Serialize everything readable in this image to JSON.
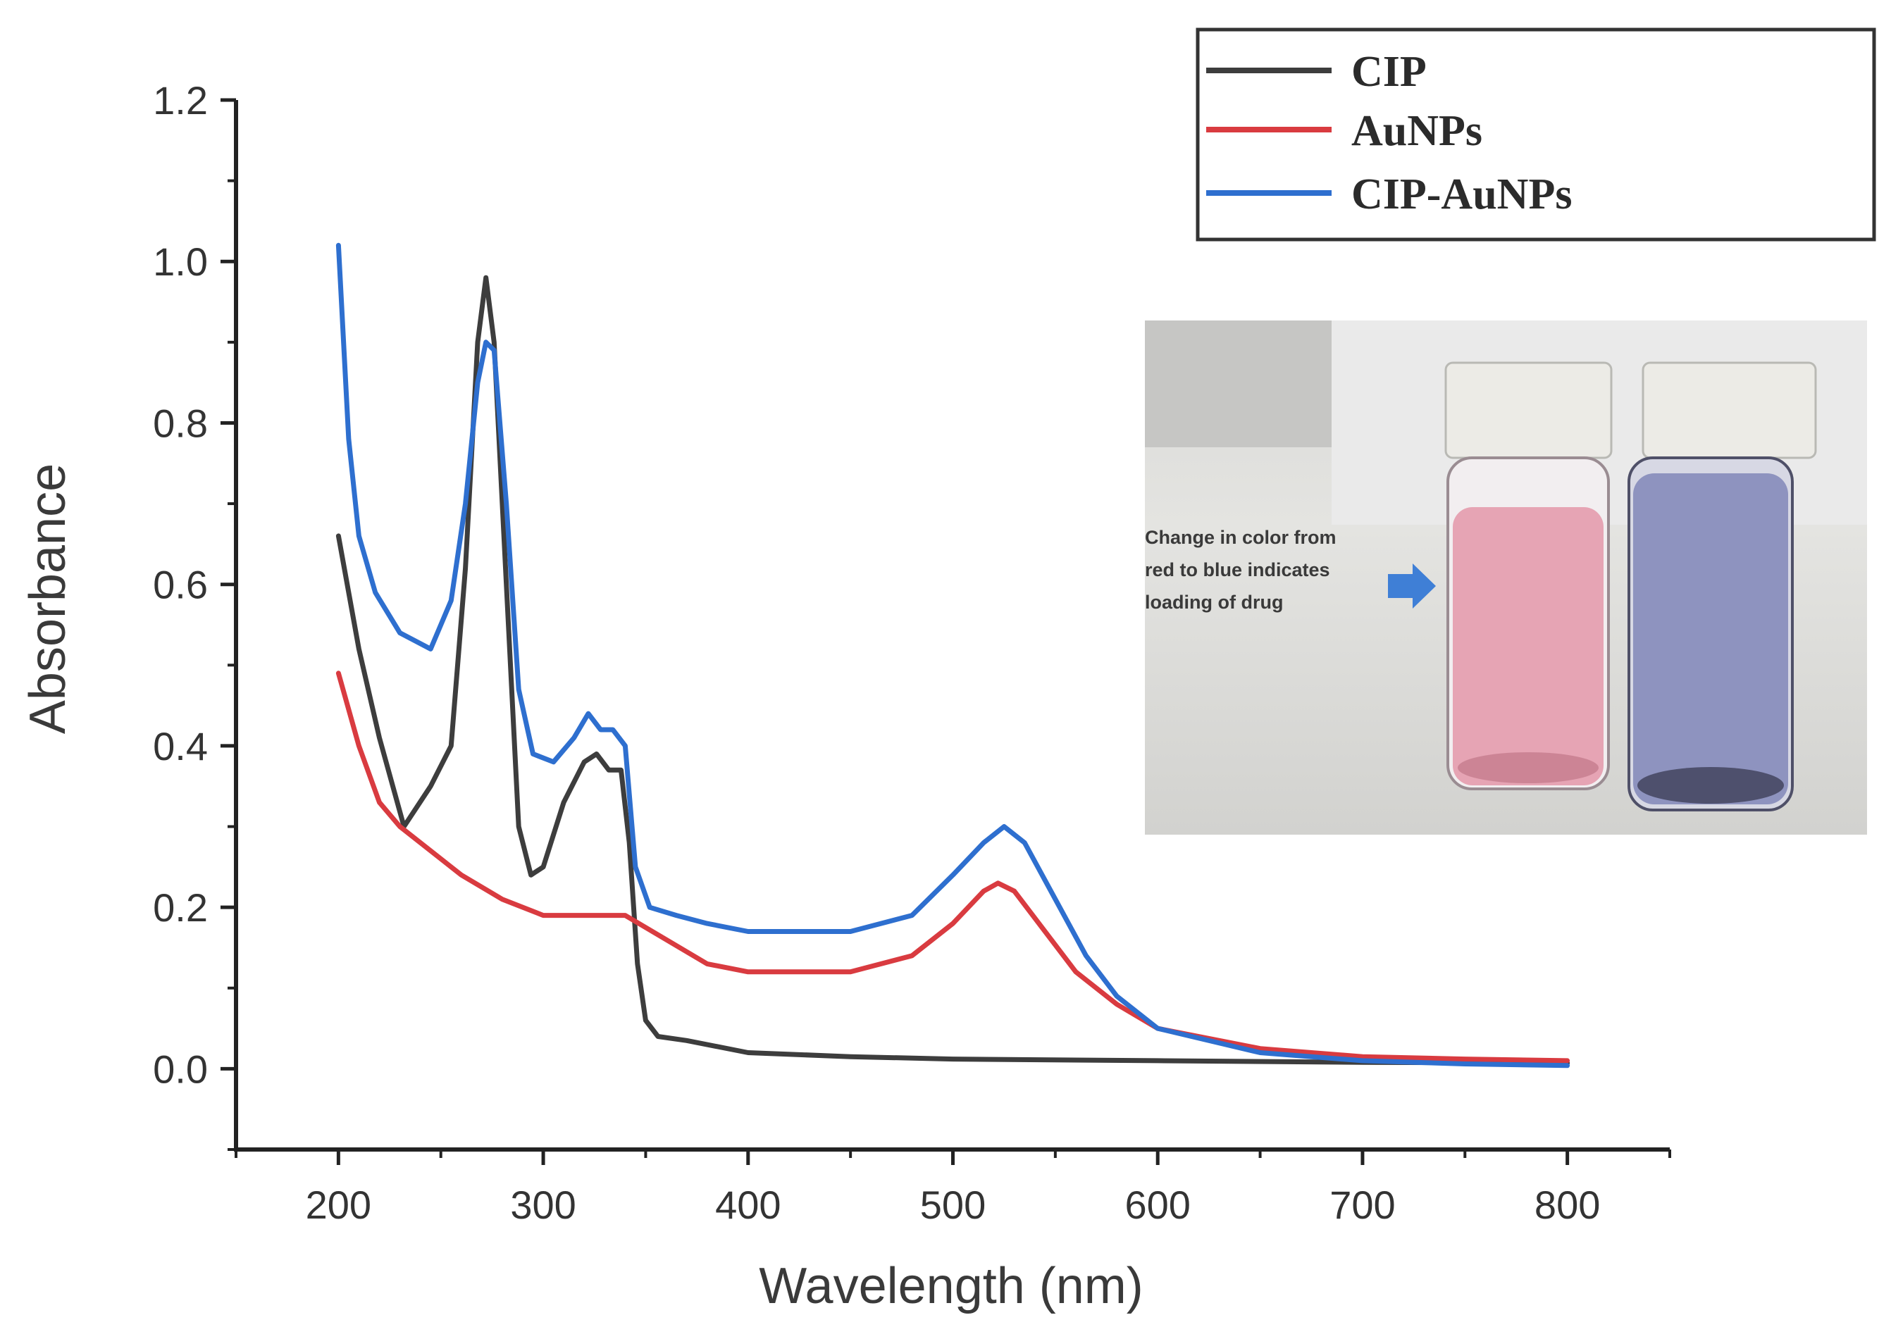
{
  "chart_data": {
    "type": "line",
    "title": "",
    "xlabel": "Wavelength (nm)",
    "ylabel": "Absorbance",
    "xlim": [
      150,
      850
    ],
    "ylim": [
      -0.1,
      1.2
    ],
    "xticks": [
      200,
      300,
      400,
      500,
      600,
      700,
      800
    ],
    "yticks": [
      0.0,
      0.2,
      0.4,
      0.6,
      0.8,
      1.0,
      1.2
    ],
    "xtick_labels": [
      "200",
      "300",
      "400",
      "500",
      "600",
      "700",
      "800"
    ],
    "ytick_labels": [
      "0.0",
      "0.2",
      "0.4",
      "0.6",
      "0.8",
      "1.0",
      "1.2"
    ],
    "grid": false,
    "legend_position": "top-right",
    "series": [
      {
        "name": "CIP",
        "color": "#3d3d3d",
        "x": [
          200,
          210,
          220,
          232,
          245,
          255,
          262,
          268,
          272,
          276,
          282,
          288,
          294,
          300,
          310,
          320,
          326,
          332,
          338,
          342,
          346,
          350,
          356,
          370,
          400,
          450,
          500,
          600,
          700,
          800
        ],
        "y": [
          0.66,
          0.52,
          0.41,
          0.3,
          0.35,
          0.4,
          0.62,
          0.9,
          0.98,
          0.9,
          0.6,
          0.3,
          0.24,
          0.25,
          0.33,
          0.38,
          0.39,
          0.37,
          0.37,
          0.28,
          0.13,
          0.06,
          0.04,
          0.035,
          0.02,
          0.015,
          0.012,
          0.01,
          0.008,
          0.007
        ]
      },
      {
        "name": "AuNPs",
        "color": "#d93b40",
        "x": [
          200,
          210,
          220,
          230,
          245,
          260,
          280,
          300,
          320,
          340,
          360,
          380,
          400,
          450,
          480,
          500,
          515,
          522,
          530,
          545,
          560,
          580,
          600,
          650,
          700,
          750,
          800
        ],
        "y": [
          0.49,
          0.4,
          0.33,
          0.3,
          0.27,
          0.24,
          0.21,
          0.19,
          0.19,
          0.19,
          0.16,
          0.13,
          0.12,
          0.12,
          0.14,
          0.18,
          0.22,
          0.23,
          0.22,
          0.17,
          0.12,
          0.08,
          0.05,
          0.025,
          0.015,
          0.012,
          0.01
        ]
      },
      {
        "name": "CIP-AuNPs",
        "color": "#2e6fcf",
        "x": [
          200,
          205,
          210,
          218,
          230,
          245,
          255,
          262,
          268,
          272,
          276,
          282,
          288,
          295,
          305,
          315,
          322,
          328,
          334,
          340,
          345,
          352,
          365,
          380,
          400,
          450,
          480,
          500,
          515,
          525,
          535,
          550,
          565,
          580,
          600,
          650,
          700,
          750,
          800
        ],
        "y": [
          1.02,
          0.78,
          0.66,
          0.59,
          0.54,
          0.52,
          0.58,
          0.7,
          0.85,
          0.9,
          0.89,
          0.7,
          0.47,
          0.39,
          0.38,
          0.41,
          0.44,
          0.42,
          0.42,
          0.4,
          0.25,
          0.2,
          0.19,
          0.18,
          0.17,
          0.17,
          0.19,
          0.24,
          0.28,
          0.3,
          0.28,
          0.21,
          0.14,
          0.09,
          0.05,
          0.02,
          0.01,
          0.006,
          0.004
        ]
      }
    ]
  },
  "inset": {
    "annotation_lines": [
      "Change in color from",
      "red to blue indicates",
      "loading of drug"
    ],
    "arrow_color": "#3f7fd6",
    "vials": [
      {
        "liquid_color": "#e6a4b4",
        "cap_color": "#ecebe6"
      },
      {
        "liquid_color": "#8e93bf",
        "cap_color": "#ecebe6"
      }
    ]
  }
}
